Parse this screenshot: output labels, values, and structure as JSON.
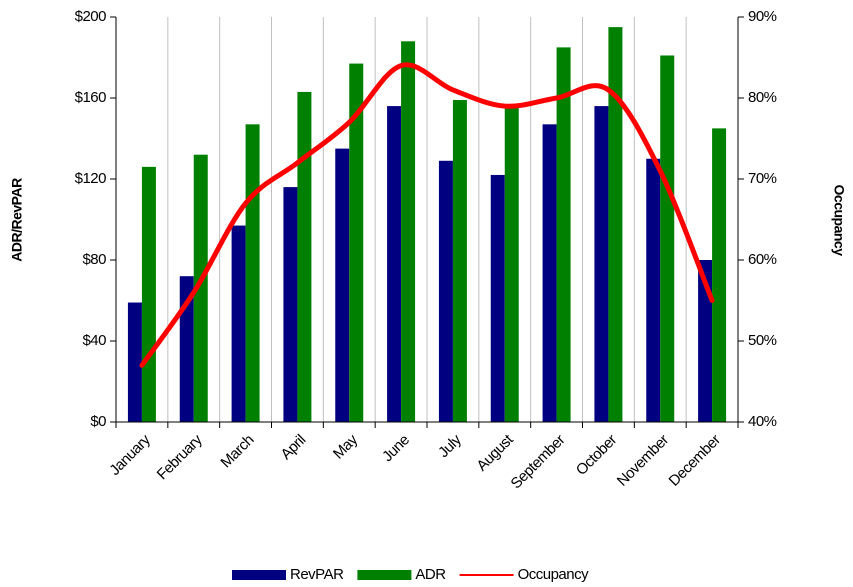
{
  "chart_data": {
    "type": "bar-line",
    "categories": [
      "January",
      "February",
      "March",
      "April",
      "May",
      "June",
      "July",
      "August",
      "September",
      "October",
      "November",
      "December"
    ],
    "y_label": "ADR/RevPAR",
    "y2_label": "Occupancy",
    "series": [
      {
        "name": "RevPAR",
        "color": "#000080",
        "type": "bar",
        "values": [
          59,
          72,
          97,
          116,
          135,
          156,
          129,
          122,
          147,
          156,
          130,
          80
        ]
      },
      {
        "name": "ADR",
        "color": "#008000",
        "type": "bar",
        "values": [
          126,
          132,
          147,
          163,
          177,
          188,
          159,
          155,
          185,
          195,
          181,
          145
        ]
      },
      {
        "name": "Occupancy",
        "color": "#ff0000",
        "type": "line",
        "axis": "y2",
        "values": [
          47,
          56,
          67,
          72,
          77,
          84,
          81,
          79,
          80,
          81,
          71,
          55
        ]
      }
    ],
    "ylim": [
      0,
      200
    ],
    "yticks": [
      {
        "value": 0,
        "label": "$0"
      },
      {
        "value": 40,
        "label": "$40"
      },
      {
        "value": 80,
        "label": "$80"
      },
      {
        "value": 120,
        "label": "$120"
      },
      {
        "value": 160,
        "label": "$160"
      },
      {
        "value": 200,
        "label": "$200"
      }
    ],
    "y2lim": [
      40,
      90
    ],
    "y2ticks": [
      {
        "value": 40,
        "label": "40%"
      },
      {
        "value": 50,
        "label": "50%"
      },
      {
        "value": 60,
        "label": "60%"
      },
      {
        "value": 70,
        "label": "70%"
      },
      {
        "value": 80,
        "label": "80%"
      },
      {
        "value": 90,
        "label": "90%"
      }
    ],
    "grid": "vertical",
    "legend": "bottom"
  }
}
